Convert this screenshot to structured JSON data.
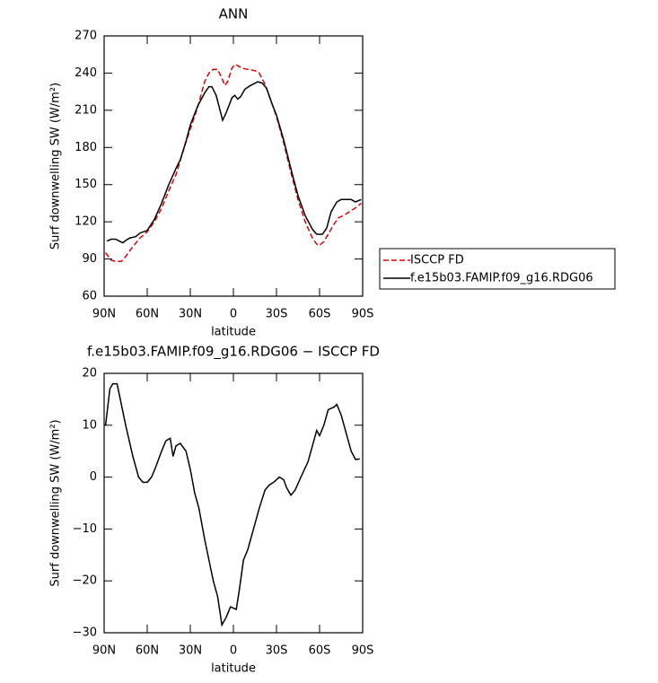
{
  "chart_data": [
    {
      "type": "line",
      "title": "ANN",
      "xlabel": "latitude",
      "ylabel": "Surf downwelling SW (W/m²)",
      "xlim": [
        90,
        -90
      ],
      "ylim": [
        60,
        270
      ],
      "xticks": [
        {
          "value": 90,
          "label": "90N"
        },
        {
          "value": 60,
          "label": "60N"
        },
        {
          "value": 30,
          "label": "30N"
        },
        0,
        {
          "value": -30,
          "label": "30S"
        },
        {
          "value": -60,
          "label": "60S"
        },
        {
          "value": -90,
          "label": "90S"
        }
      ],
      "yticks": [
        60,
        90,
        120,
        150,
        180,
        210,
        240,
        270
      ],
      "legend": "right",
      "series": [
        {
          "name": "ISCCP FD",
          "color": "#e00000",
          "line_style": "dashed",
          "x": [
            89,
            85,
            82,
            78,
            75,
            70,
            65,
            60,
            55,
            50,
            45,
            40,
            35,
            30,
            25,
            20,
            17,
            14,
            11,
            8,
            6,
            4,
            1,
            -1,
            -3,
            -6,
            -10,
            -15,
            -18,
            -22,
            -26,
            -30,
            -35,
            -40,
            -45,
            -50,
            -55,
            -58,
            -60,
            -63,
            -66,
            -70,
            -73,
            -78,
            -82,
            -86,
            -89
          ],
          "values": [
            95,
            89,
            88,
            88,
            92,
            100,
            107,
            112,
            120,
            131,
            145,
            158,
            177,
            195,
            212,
            233,
            240,
            243,
            243,
            236,
            230,
            233,
            244,
            247,
            246,
            244,
            243,
            242,
            240,
            231,
            218,
            205,
            184,
            160,
            138,
            120,
            107,
            102,
            101,
            104,
            110,
            118,
            123,
            126,
            129,
            132,
            135
          ]
        },
        {
          "name": "f.e15b03.FAMIP.f09_g16.RDG06",
          "color": "#000000",
          "line_style": "solid",
          "x": [
            88,
            85,
            82,
            77,
            75,
            72,
            68,
            65,
            60,
            55,
            50,
            45,
            40,
            37,
            33,
            30,
            25,
            20,
            17,
            15,
            12,
            7.5,
            5,
            1,
            -1,
            -3,
            -5,
            -8,
            -12,
            -17,
            -20,
            -23,
            -27,
            -30,
            -35,
            -40,
            -45,
            -50,
            -55,
            -58,
            -62,
            -65,
            -68,
            -72,
            -75,
            -78,
            -82,
            -85,
            -89
          ],
          "values": [
            104.5,
            106,
            106,
            103,
            105,
            107,
            108,
            111,
            113,
            122,
            135,
            150,
            163,
            170,
            185,
            198,
            213,
            224,
            229,
            229,
            222,
            202,
            208,
            220,
            222,
            219,
            221,
            227,
            230,
            233,
            232,
            228,
            215,
            206,
            186,
            163,
            141,
            125,
            114,
            110,
            110,
            115,
            128,
            136,
            138,
            138,
            138,
            136,
            138
          ]
        }
      ]
    },
    {
      "type": "line",
      "title": "f.e15b03.FAMIP.f09_g16.RDG06 − ISCCP FD",
      "xlabel": "latitude",
      "ylabel": "Surf downwelling SW (W/m²)",
      "xlim": [
        90,
        -90
      ],
      "ylim": [
        -30,
        20
      ],
      "xticks": [
        {
          "value": 90,
          "label": "90N"
        },
        {
          "value": 60,
          "label": "60N"
        },
        {
          "value": 30,
          "label": "30N"
        },
        0,
        {
          "value": -30,
          "label": "30S"
        },
        {
          "value": -60,
          "label": "60S"
        },
        {
          "value": -90,
          "label": "90S"
        }
      ],
      "yticks": [
        {
          "value": -30,
          "label": "−30"
        },
        {
          "value": -20,
          "label": "−20"
        },
        {
          "value": -10,
          "label": "−10"
        },
        0,
        10,
        20
      ],
      "series": [
        {
          "color": "#000000",
          "line_style": "solid",
          "x": [
            89,
            86,
            84,
            81,
            78,
            75,
            70,
            66,
            63,
            60,
            57,
            54,
            50,
            47,
            44,
            42,
            40,
            37,
            33,
            30,
            27,
            24,
            20,
            17,
            14,
            11,
            8,
            5,
            2,
            -2,
            -4,
            -7,
            -10,
            -14,
            -18,
            -22,
            -25,
            -28,
            -32,
            -35,
            -37,
            -40,
            -43,
            -47,
            -52,
            -55,
            -58,
            -60,
            -63,
            -66,
            -70,
            -72,
            -75,
            -78,
            -82,
            -85,
            -88
          ],
          "values": [
            10,
            17,
            18,
            18,
            14,
            10,
            4,
            0,
            -1,
            -1,
            0,
            2,
            5,
            7,
            7.5,
            4,
            6,
            6.5,
            5,
            1.5,
            -3,
            -6,
            -12,
            -16,
            -20,
            -23,
            -28.5,
            -27,
            -25,
            -25.5,
            -22,
            -16,
            -14,
            -10,
            -6,
            -2.5,
            -1.5,
            -1,
            0,
            -0.5,
            -2,
            -3.5,
            -2.5,
            0,
            3,
            6,
            9,
            8,
            10,
            13,
            13.5,
            14,
            12,
            9,
            5,
            3.4,
            3.5
          ]
        }
      ]
    }
  ]
}
